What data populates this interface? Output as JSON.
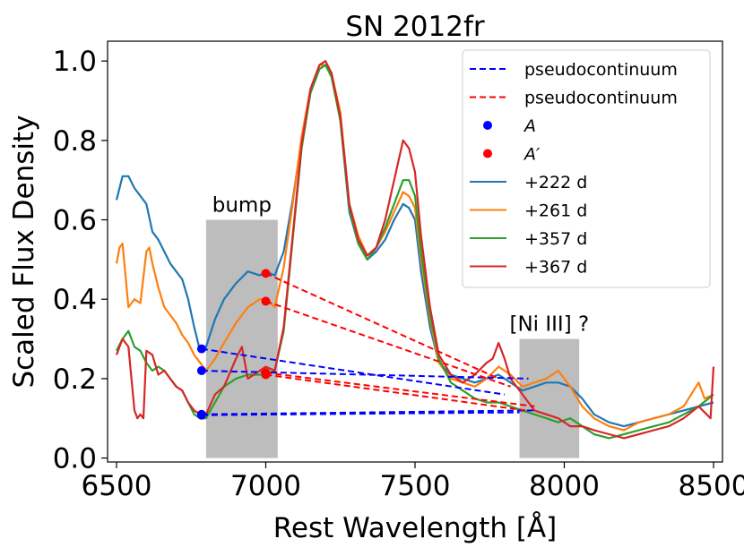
{
  "chart_data": {
    "type": "line",
    "title": "SN 2012fr",
    "xlabel": "Rest Wavelength [Å]",
    "ylabel": "Scaled Flux Density",
    "xlim": [
      6470,
      8530
    ],
    "ylim": [
      -0.01,
      1.05
    ],
    "xticks": [
      6500,
      7000,
      7500,
      8000,
      8500
    ],
    "yticks": [
      0.0,
      0.2,
      0.4,
      0.6,
      0.8,
      1.0
    ],
    "xtick_labels": [
      "6500",
      "7000",
      "7500",
      "8000",
      "8500"
    ],
    "ytick_labels": [
      "0.0",
      "0.2",
      "0.4",
      "0.6",
      "0.8",
      "1.0"
    ],
    "grid": false,
    "legend_position": "top-right",
    "regions": [
      {
        "name": "bump",
        "label": "bump",
        "x0": 6800,
        "x1": 7040,
        "y0": 0.0,
        "y1": 0.6
      },
      {
        "name": "ni-iii",
        "label": "[Ni III] ?",
        "x0": 7850,
        "x1": 8050,
        "y0": 0.0,
        "y1": 0.3
      }
    ],
    "series": [
      {
        "name": "+222 d",
        "color": "#1f77b4",
        "x": [
          6500,
          6520,
          6540,
          6560,
          6580,
          6600,
          6620,
          6640,
          6660,
          6680,
          6700,
          6720,
          6740,
          6760,
          6780,
          6800,
          6830,
          6860,
          6900,
          6940,
          6980,
          7000,
          7030,
          7060,
          7090,
          7120,
          7150,
          7180,
          7200,
          7220,
          7250,
          7280,
          7310,
          7340,
          7370,
          7400,
          7430,
          7460,
          7480,
          7500,
          7520,
          7550,
          7580,
          7620,
          7660,
          7700,
          7740,
          7780,
          7820,
          7860,
          7900,
          7940,
          7980,
          8020,
          8060,
          8100,
          8150,
          8200,
          8250,
          8300,
          8350,
          8400,
          8450,
          8500
        ],
        "y": [
          0.65,
          0.71,
          0.71,
          0.68,
          0.66,
          0.64,
          0.57,
          0.55,
          0.52,
          0.49,
          0.47,
          0.45,
          0.4,
          0.33,
          0.27,
          0.28,
          0.35,
          0.4,
          0.44,
          0.47,
          0.46,
          0.47,
          0.46,
          0.52,
          0.65,
          0.8,
          0.92,
          0.98,
          0.99,
          0.97,
          0.85,
          0.62,
          0.54,
          0.5,
          0.52,
          0.55,
          0.6,
          0.64,
          0.63,
          0.6,
          0.47,
          0.33,
          0.24,
          0.21,
          0.2,
          0.19,
          0.2,
          0.21,
          0.19,
          0.17,
          0.18,
          0.19,
          0.19,
          0.18,
          0.15,
          0.11,
          0.09,
          0.08,
          0.09,
          0.1,
          0.11,
          0.12,
          0.13,
          0.14
        ]
      },
      {
        "name": "+261 d",
        "color": "#ff7f0e",
        "x": [
          6500,
          6510,
          6520,
          6540,
          6560,
          6580,
          6600,
          6610,
          6620,
          6640,
          6660,
          6680,
          6700,
          6720,
          6740,
          6760,
          6780,
          6800,
          6830,
          6860,
          6900,
          6940,
          6980,
          7000,
          7030,
          7060,
          7090,
          7120,
          7150,
          7180,
          7200,
          7220,
          7250,
          7280,
          7310,
          7340,
          7370,
          7400,
          7430,
          7460,
          7480,
          7500,
          7520,
          7550,
          7580,
          7620,
          7660,
          7700,
          7740,
          7780,
          7820,
          7860,
          7900,
          7940,
          7980,
          8020,
          8060,
          8100,
          8150,
          8200,
          8250,
          8300,
          8350,
          8400,
          8450,
          8470,
          8500
        ],
        "y": [
          0.49,
          0.53,
          0.54,
          0.38,
          0.4,
          0.39,
          0.52,
          0.53,
          0.49,
          0.43,
          0.38,
          0.36,
          0.34,
          0.31,
          0.29,
          0.26,
          0.24,
          0.22,
          0.25,
          0.29,
          0.34,
          0.38,
          0.4,
          0.4,
          0.38,
          0.48,
          0.64,
          0.81,
          0.93,
          0.99,
          0.99,
          0.97,
          0.87,
          0.64,
          0.56,
          0.51,
          0.53,
          0.57,
          0.62,
          0.67,
          0.66,
          0.63,
          0.5,
          0.35,
          0.24,
          0.2,
          0.19,
          0.18,
          0.2,
          0.23,
          0.21,
          0.18,
          0.19,
          0.2,
          0.22,
          0.18,
          0.13,
          0.1,
          0.08,
          0.07,
          0.09,
          0.1,
          0.11,
          0.13,
          0.19,
          0.15,
          0.16
        ]
      },
      {
        "name": "+357 d",
        "color": "#2ca02c",
        "x": [
          6500,
          6520,
          6540,
          6560,
          6580,
          6600,
          6620,
          6640,
          6660,
          6680,
          6700,
          6720,
          6740,
          6760,
          6780,
          6800,
          6830,
          6860,
          6900,
          6940,
          6980,
          7000,
          7030,
          7060,
          7090,
          7120,
          7150,
          7180,
          7200,
          7220,
          7250,
          7280,
          7310,
          7340,
          7370,
          7400,
          7430,
          7460,
          7480,
          7500,
          7520,
          7550,
          7580,
          7620,
          7660,
          7700,
          7740,
          7780,
          7820,
          7860,
          7900,
          7940,
          7980,
          8020,
          8060,
          8100,
          8150,
          8200,
          8250,
          8300,
          8350,
          8400,
          8450,
          8500
        ],
        "y": [
          0.27,
          0.3,
          0.32,
          0.28,
          0.27,
          0.24,
          0.22,
          0.23,
          0.22,
          0.2,
          0.18,
          0.17,
          0.14,
          0.11,
          0.1,
          0.1,
          0.14,
          0.18,
          0.2,
          0.21,
          0.21,
          0.21,
          0.22,
          0.32,
          0.55,
          0.78,
          0.92,
          0.98,
          0.99,
          0.96,
          0.85,
          0.63,
          0.54,
          0.5,
          0.53,
          0.58,
          0.64,
          0.7,
          0.7,
          0.66,
          0.52,
          0.36,
          0.25,
          0.19,
          0.17,
          0.15,
          0.14,
          0.14,
          0.13,
          0.12,
          0.11,
          0.1,
          0.09,
          0.1,
          0.08,
          0.06,
          0.05,
          0.06,
          0.07,
          0.08,
          0.09,
          0.11,
          0.13,
          0.16
        ]
      },
      {
        "name": "+367 d",
        "color": "#d62728",
        "x": [
          6500,
          6520,
          6540,
          6560,
          6570,
          6580,
          6590,
          6600,
          6620,
          6640,
          6660,
          6680,
          6700,
          6720,
          6740,
          6760,
          6780,
          6800,
          6830,
          6860,
          6900,
          6920,
          6940,
          6980,
          7000,
          7030,
          7060,
          7090,
          7120,
          7150,
          7180,
          7200,
          7220,
          7250,
          7280,
          7310,
          7340,
          7370,
          7400,
          7430,
          7460,
          7480,
          7500,
          7520,
          7550,
          7580,
          7620,
          7660,
          7700,
          7740,
          7760,
          7780,
          7800,
          7820,
          7860,
          7900,
          7940,
          7980,
          8020,
          8060,
          8100,
          8150,
          8200,
          8250,
          8300,
          8350,
          8400,
          8450,
          8490,
          8500
        ],
        "y": [
          0.26,
          0.3,
          0.28,
          0.12,
          0.1,
          0.11,
          0.1,
          0.27,
          0.26,
          0.21,
          0.22,
          0.2,
          0.18,
          0.17,
          0.14,
          0.12,
          0.11,
          0.11,
          0.16,
          0.18,
          0.25,
          0.28,
          0.2,
          0.22,
          0.23,
          0.22,
          0.33,
          0.56,
          0.79,
          0.93,
          0.99,
          1.0,
          0.97,
          0.86,
          0.64,
          0.55,
          0.51,
          0.53,
          0.6,
          0.7,
          0.8,
          0.78,
          0.72,
          0.56,
          0.38,
          0.26,
          0.21,
          0.19,
          0.21,
          0.24,
          0.25,
          0.29,
          0.25,
          0.2,
          0.16,
          0.12,
          0.11,
          0.1,
          0.08,
          0.08,
          0.07,
          0.06,
          0.05,
          0.06,
          0.07,
          0.08,
          0.1,
          0.13,
          0.1,
          0.23
        ]
      }
    ],
    "pseudocontinuum": [
      {
        "name": "pseudocontinuum",
        "color": "#0000ff",
        "segments": [
          {
            "from": [
              6785,
              0.275
            ],
            "to": [
              7800,
              0.16
            ]
          },
          {
            "from": [
              6785,
              0.22
            ],
            "to": [
              7880,
              0.2
            ]
          },
          {
            "from": [
              6785,
              0.11
            ],
            "to": [
              7900,
              0.12
            ]
          },
          {
            "from": [
              6785,
              0.108
            ],
            "to": [
              7850,
              0.115
            ]
          }
        ]
      },
      {
        "name": "pseudocontinuum",
        "color": "#ff0000",
        "segments": [
          {
            "from": [
              7000,
              0.465
            ],
            "to": [
              7780,
              0.2
            ]
          },
          {
            "from": [
              7000,
              0.395
            ],
            "to": [
              7820,
              0.18
            ]
          },
          {
            "from": [
              7000,
              0.21
            ],
            "to": [
              7870,
              0.12
            ]
          },
          {
            "from": [
              7000,
              0.215
            ],
            "to": [
              7900,
              0.13
            ]
          }
        ]
      }
    ],
    "points": [
      {
        "name": "A",
        "color": "#0000ff",
        "marks": [
          [
            6785,
            0.275
          ],
          [
            6785,
            0.22
          ],
          [
            6785,
            0.11
          ],
          [
            6785,
            0.108
          ]
        ]
      },
      {
        "name": "A'",
        "color": "#ff0000",
        "marks": [
          [
            7000,
            0.465
          ],
          [
            7000,
            0.395
          ],
          [
            7000,
            0.21
          ],
          [
            7000,
            0.215
          ]
        ]
      }
    ],
    "legend": [
      {
        "kind": "dashed",
        "label": "pseudocontinuum",
        "color": "#0000ff"
      },
      {
        "kind": "dashed",
        "label": "pseudocontinuum",
        "color": "#ff0000"
      },
      {
        "kind": "dot",
        "label": "A",
        "color": "#0000ff"
      },
      {
        "kind": "dot",
        "label": "A′",
        "color": "#ff0000"
      },
      {
        "kind": "line",
        "label": "+222 d",
        "color": "#1f77b4"
      },
      {
        "kind": "line",
        "label": "+261 d",
        "color": "#ff7f0e"
      },
      {
        "kind": "line",
        "label": "+357 d",
        "color": "#2ca02c"
      },
      {
        "kind": "line",
        "label": "+367 d",
        "color": "#d62728"
      }
    ]
  }
}
